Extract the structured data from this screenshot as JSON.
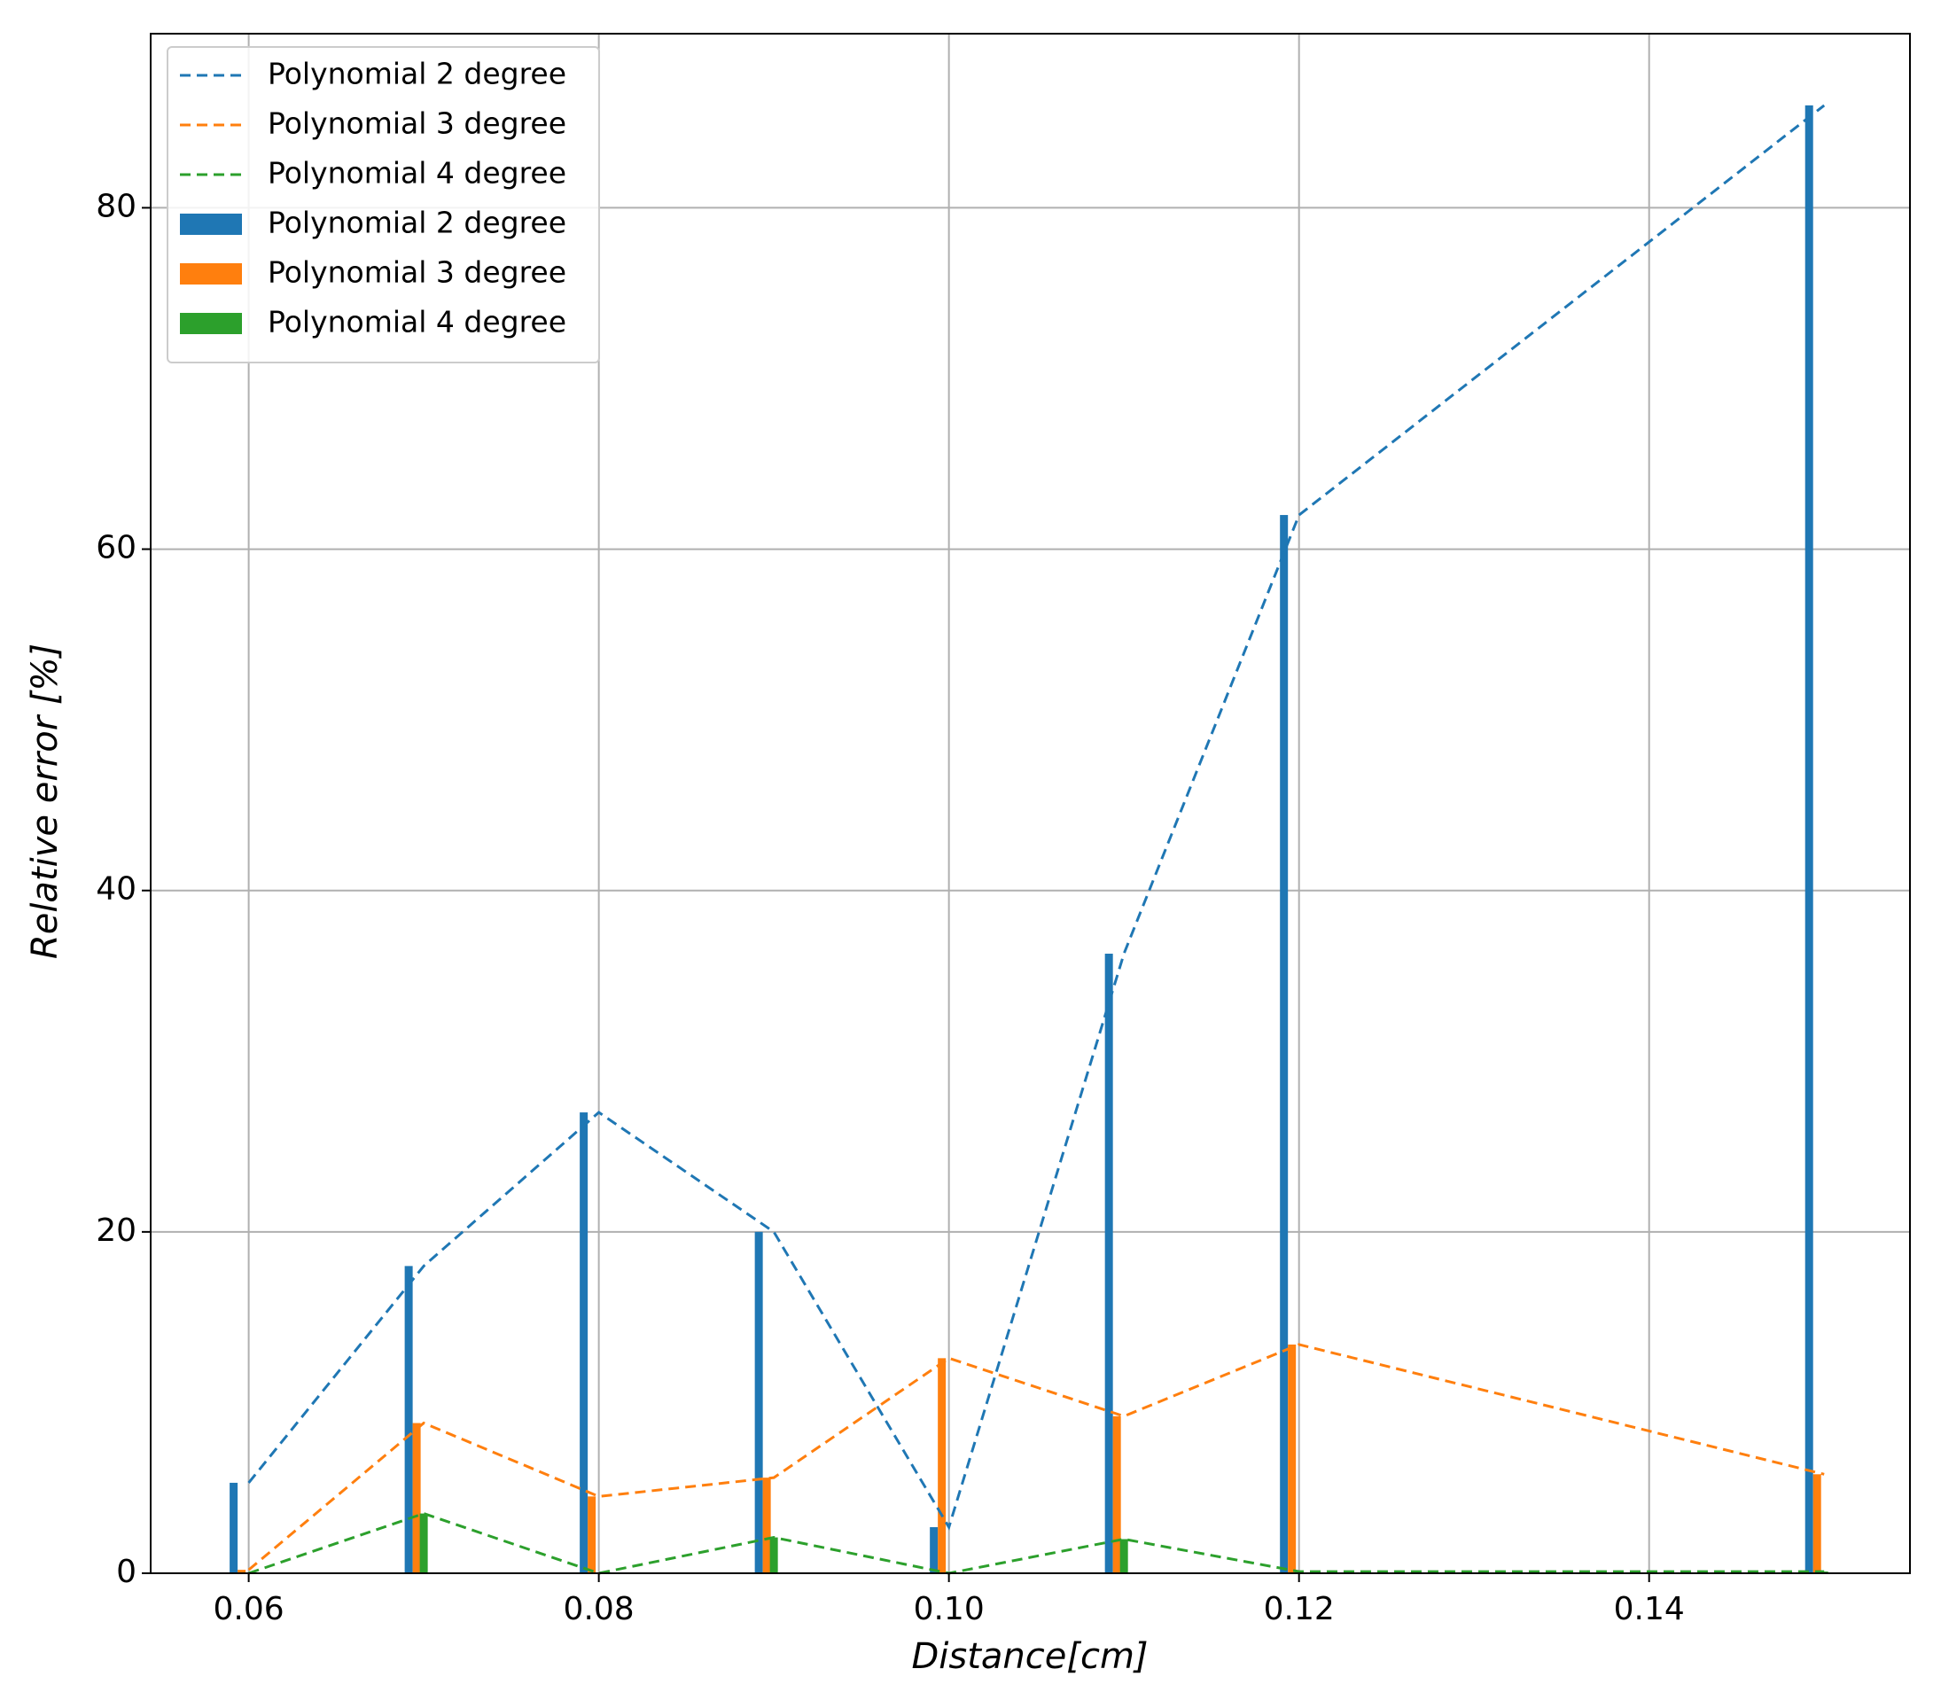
{
  "chart_data": {
    "type": "combo",
    "x_label": "Distance[cm]",
    "y_label": "Relative error [%]",
    "x": [
      0.06,
      0.07,
      0.08,
      0.09,
      0.1,
      0.11,
      0.12,
      0.15
    ],
    "series": [
      {
        "name": "Polynomial 2 degree",
        "type": "line",
        "color": "#1f77b4",
        "values": [
          5.3,
          18,
          27,
          20,
          2.7,
          36.3,
          62,
          86
        ]
      },
      {
        "name": "Polynomial 3 degree",
        "type": "line",
        "color": "#ff7f0e",
        "values": [
          0.2,
          8.8,
          4.5,
          5.6,
          12.6,
          9.2,
          13.4,
          5.8
        ]
      },
      {
        "name": "Polynomial 4 degree",
        "type": "line",
        "color": "#2ca02c",
        "values": [
          0,
          3.5,
          0,
          2.1,
          0,
          2.0,
          0.1,
          0.1
        ]
      },
      {
        "name": "Polynomial 2 degree",
        "type": "bar",
        "color": "#1f77b4",
        "values": [
          5.3,
          18,
          27,
          20,
          2.7,
          36.3,
          62,
          86
        ]
      },
      {
        "name": "Polynomial 3 degree",
        "type": "bar",
        "color": "#ff7f0e",
        "values": [
          0.2,
          8.8,
          4.5,
          5.6,
          12.6,
          9.2,
          13.4,
          5.8
        ]
      },
      {
        "name": "Polynomial 4 degree",
        "type": "bar",
        "color": "#2ca02c",
        "values": [
          0,
          3.5,
          0,
          2.1,
          0,
          2.0,
          0.1,
          0.1
        ]
      }
    ],
    "xlim": [
      0.0544,
      0.1549
    ],
    "xticks": [
      0.06,
      0.08,
      {
        "value": 0.1,
        "label": "0.10"
      },
      0.12,
      0.14
    ],
    "ylim": [
      0,
      90.2
    ],
    "yticks": [
      0,
      20,
      40,
      60,
      80
    ],
    "grid": true,
    "legend": "upper left"
  }
}
